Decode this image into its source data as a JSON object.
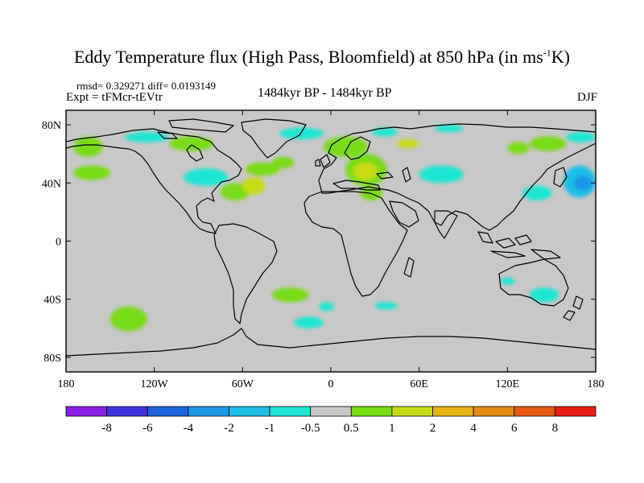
{
  "title": {
    "main": "Eddy Temperature flux (High Pass, Bloomfield) at 850 hPa (in ms",
    "sup": "-1",
    "end": "K)"
  },
  "stats": "rmsd= 0.329271 diff= 0.0193149",
  "experiment": "Expt = tFMcr-tEVtr",
  "period": "1484kyr BP - 1484kyr BP",
  "season": "DJF",
  "axes": {
    "x_ticks": [
      {
        "lon": -180,
        "label": "180"
      },
      {
        "lon": -120,
        "label": "120W"
      },
      {
        "lon": -60,
        "label": "60W"
      },
      {
        "lon": 0,
        "label": "0"
      },
      {
        "lon": 60,
        "label": "60E"
      },
      {
        "lon": 120,
        "label": "120E"
      },
      {
        "lon": 180,
        "label": "180"
      }
    ],
    "y_ticks": [
      {
        "lat": 80,
        "label": "80N"
      },
      {
        "lat": 40,
        "label": "40N"
      },
      {
        "lat": 0,
        "label": "0"
      },
      {
        "lat": -40,
        "label": "40S"
      },
      {
        "lat": -80,
        "label": "80S"
      }
    ],
    "lon_range": [
      -180,
      180
    ],
    "lat_range": [
      -90,
      90
    ]
  },
  "colorbar": {
    "colors": [
      "#8c1ee6",
      "#3c32dc",
      "#1e64dc",
      "#1e96e6",
      "#1ebee6",
      "#1ee6d2",
      "#c8c8c8",
      "#78dc14",
      "#c8dc14",
      "#e6b414",
      "#e68c14",
      "#e65a14",
      "#e61e14"
    ],
    "labels": [
      "-8",
      "-6",
      "-4",
      "-2",
      "-1",
      "-0.5",
      "0.5",
      "1",
      "2",
      "4",
      "6",
      "8"
    ]
  },
  "colors": {
    "background": "#c8c8c8",
    "coast": "#000000"
  },
  "anomaly_regions": [
    {
      "lon": [
        -175,
        -155
      ],
      "lat": [
        58,
        72
      ],
      "color": "#78dc14"
    },
    {
      "lon": [
        -175,
        -150
      ],
      "lat": [
        42,
        52
      ],
      "color": "#78dc14"
    },
    {
      "lon": [
        -140,
        -110
      ],
      "lat": [
        68,
        75
      ],
      "color": "#1ee6d2"
    },
    {
      "lon": [
        -110,
        -80
      ],
      "lat": [
        62,
        72
      ],
      "color": "#78dc14"
    },
    {
      "lon": [
        -100,
        -70
      ],
      "lat": [
        38,
        50
      ],
      "color": "#1ee6d2"
    },
    {
      "lon": [
        -75,
        -55
      ],
      "lat": [
        28,
        40
      ],
      "color": "#78dc14"
    },
    {
      "lon": [
        -58,
        -35
      ],
      "lat": [
        45,
        54
      ],
      "color": "#78dc14"
    },
    {
      "lon": [
        -60,
        -45
      ],
      "lat": [
        32,
        44
      ],
      "color": "#c8dc14"
    },
    {
      "lon": [
        -40,
        -25
      ],
      "lat": [
        50,
        58
      ],
      "color": "#78dc14"
    },
    {
      "lon": [
        -35,
        -5
      ],
      "lat": [
        70,
        78
      ],
      "color": "#1ee6d2"
    },
    {
      "lon": [
        -5,
        25
      ],
      "lat": [
        58,
        72
      ],
      "color": "#78dc14"
    },
    {
      "lon": [
        10,
        38
      ],
      "lat": [
        38,
        60
      ],
      "color": "#78dc14"
    },
    {
      "lon": [
        15,
        32
      ],
      "lat": [
        42,
        54
      ],
      "color": "#c8dc14"
    },
    {
      "lon": [
        20,
        35
      ],
      "lat": [
        28,
        38
      ],
      "color": "#78dc14"
    },
    {
      "lon": [
        28,
        45
      ],
      "lat": [
        72,
        78
      ],
      "color": "#1ee6d2"
    },
    {
      "lon": [
        45,
        60
      ],
      "lat": [
        64,
        70
      ],
      "color": "#c8dc14"
    },
    {
      "lon": [
        60,
        90
      ],
      "lat": [
        40,
        52
      ],
      "color": "#1ee6d2"
    },
    {
      "lon": [
        70,
        90
      ],
      "lat": [
        75,
        80
      ],
      "color": "#1ee6d2"
    },
    {
      "lon": [
        120,
        135
      ],
      "lat": [
        60,
        68
      ],
      "color": "#78dc14"
    },
    {
      "lon": [
        135,
        160
      ],
      "lat": [
        62,
        72
      ],
      "color": "#78dc14"
    },
    {
      "lon": [
        160,
        180
      ],
      "lat": [
        68,
        75
      ],
      "color": "#1ee6d2"
    },
    {
      "lon": [
        158,
        180
      ],
      "lat": [
        30,
        52
      ],
      "color": "#1ebee6"
    },
    {
      "lon": [
        165,
        178
      ],
      "lat": [
        35,
        45
      ],
      "color": "#1e96e6"
    },
    {
      "lon": [
        130,
        150
      ],
      "lat": [
        28,
        38
      ],
      "color": "#1ee6d2"
    },
    {
      "lon": [
        115,
        125
      ],
      "lat": [
        -30,
        -25
      ],
      "color": "#1ee6d2"
    },
    {
      "lon": [
        135,
        155
      ],
      "lat": [
        -42,
        -32
      ],
      "color": "#1ee6d2"
    },
    {
      "lon": [
        -150,
        -125
      ],
      "lat": [
        -62,
        -45
      ],
      "color": "#78dc14"
    },
    {
      "lon": [
        -40,
        -15
      ],
      "lat": [
        -42,
        -32
      ],
      "color": "#78dc14"
    },
    {
      "lon": [
        -25,
        -5
      ],
      "lat": [
        -60,
        -52
      ],
      "color": "#1ee6d2"
    },
    {
      "lon": [
        -8,
        2
      ],
      "lat": [
        -48,
        -42
      ],
      "color": "#1ee6d2"
    },
    {
      "lon": [
        30,
        45
      ],
      "lat": [
        -47,
        -42
      ],
      "color": "#1ee6d2"
    }
  ]
}
